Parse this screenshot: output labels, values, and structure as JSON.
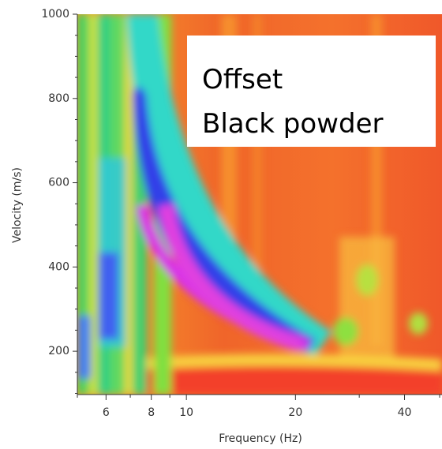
{
  "chart_data": {
    "type": "heatmap",
    "xlabel": "Frequency (Hz)",
    "ylabel": "Velocity (m/s)",
    "xscale": "log",
    "xlim": [
      5,
      50
    ],
    "ylim": [
      100,
      1000
    ],
    "xticks": [
      6,
      8,
      10,
      20,
      40
    ],
    "xminorticks": [
      5,
      7,
      9,
      30,
      50
    ],
    "yticks": [
      200,
      400,
      600,
      800,
      1000
    ],
    "yminorticks": [
      100,
      150,
      250,
      300,
      350,
      450,
      500,
      550,
      650,
      700,
      750,
      850,
      900,
      950
    ],
    "annotations": [
      "Offset",
      "Black powder"
    ]
  }
}
